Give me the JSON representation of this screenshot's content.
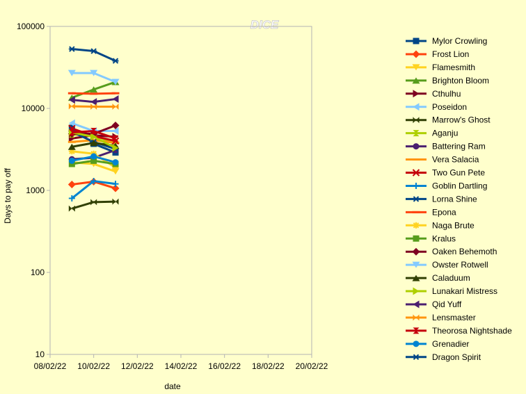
{
  "chart_data": {
    "type": "line",
    "title": "DICE",
    "xlabel": "date",
    "ylabel": "Days to pay off",
    "y_scale": "log",
    "ylim": [
      10,
      100000
    ],
    "y_ticks": [
      "10",
      "100",
      "1000",
      "10000",
      "100000"
    ],
    "xlim": [
      "2022-02-08",
      "2022-02-20"
    ],
    "x_ticks": [
      "08/02/22",
      "10/02/22",
      "12/02/22",
      "14/02/22",
      "16/02/22",
      "18/02/22",
      "20/02/22"
    ],
    "x": [
      "2022-02-09",
      "2022-02-10",
      "2022-02-11"
    ],
    "legend_position": "right",
    "grid": false,
    "series": [
      {
        "name": "Mylor Crowling",
        "color": "#004586",
        "marker": "square",
        "values": [
          5800,
          3700,
          2900
        ]
      },
      {
        "name": "Frost Lion",
        "color": "#ff420e",
        "marker": "diamond",
        "values": [
          1180,
          1280,
          1060
        ]
      },
      {
        "name": "Flamesmith",
        "color": "#ffd320",
        "marker": "triangle-down",
        "values": [
          2200,
          2100,
          1700
        ]
      },
      {
        "name": "Brighton Bloom",
        "color": "#579d1c",
        "marker": "triangle-up",
        "values": [
          13500,
          17000,
          21000
        ]
      },
      {
        "name": "Cthulhu",
        "color": "#7e0021",
        "marker": "triangle-right",
        "values": [
          4300,
          4700,
          4500
        ]
      },
      {
        "name": "Poseidon",
        "color": "#83caff",
        "marker": "triangle-left",
        "values": [
          6600,
          5300,
          5300
        ]
      },
      {
        "name": "Marrow's Ghost",
        "color": "#314004",
        "marker": "bowtie",
        "values": [
          600,
          720,
          730
        ]
      },
      {
        "name": "Aganju",
        "color": "#aecf00",
        "marker": "hourglass",
        "values": [
          4800,
          4700,
          3700
        ]
      },
      {
        "name": "Battering Ram",
        "color": "#4b1f6f",
        "marker": "circle",
        "values": [
          2400,
          2500,
          3100
        ]
      },
      {
        "name": "Vera Salacia",
        "color": "#ff950e",
        "marker": "dash",
        "values": [
          3900,
          4100,
          3800
        ]
      },
      {
        "name": "Two Gun Pete",
        "color": "#c5000b",
        "marker": "x",
        "values": [
          5700,
          4600,
          4000
        ]
      },
      {
        "name": "Goblin Dartling",
        "color": "#0084d1",
        "marker": "plus",
        "values": [
          800,
          1300,
          1200
        ]
      },
      {
        "name": "Lorna Shine",
        "color": "#004586",
        "marker": "asterisk",
        "values": [
          5200,
          3900,
          3200
        ]
      },
      {
        "name": "Epona",
        "color": "#ff420e",
        "marker": "hbar",
        "values": [
          15300,
          15100,
          15300
        ]
      },
      {
        "name": "Naga Brute",
        "color": "#ffd320",
        "marker": "star",
        "values": [
          3000,
          2800,
          1900
        ]
      },
      {
        "name": "Kralus",
        "color": "#579d1c",
        "marker": "square",
        "values": [
          2100,
          2300,
          2100
        ]
      },
      {
        "name": "Oaken Behemoth",
        "color": "#7e0021",
        "marker": "diamond",
        "values": [
          4900,
          4900,
          6200
        ]
      },
      {
        "name": "Owster Rotwell",
        "color": "#83caff",
        "marker": "triangle-down",
        "values": [
          27000,
          27000,
          21000
        ]
      },
      {
        "name": "Caladuum",
        "color": "#314004",
        "marker": "triangle-up",
        "values": [
          3400,
          3800,
          3500
        ]
      },
      {
        "name": "Lunakari Mistress",
        "color": "#aecf00",
        "marker": "triangle-right",
        "values": [
          5100,
          4500,
          3300
        ]
      },
      {
        "name": "Qid Yuff",
        "color": "#4b1f6f",
        "marker": "triangle-left",
        "values": [
          12700,
          12000,
          13000
        ]
      },
      {
        "name": "Lensmaster",
        "color": "#ff950e",
        "marker": "bowtie",
        "values": [
          10600,
          10500,
          10500
        ]
      },
      {
        "name": "Theorosa Nightshade",
        "color": "#c5000b",
        "marker": "hourglass",
        "values": [
          5100,
          5300,
          4300
        ]
      },
      {
        "name": "Grenadier",
        "color": "#0084d1",
        "marker": "circle",
        "values": [
          2300,
          2600,
          2200
        ]
      },
      {
        "name": "Dragon Spirit",
        "color": "#004586",
        "marker": "asterisk",
        "values": [
          53000,
          50000,
          38000
        ]
      }
    ]
  }
}
